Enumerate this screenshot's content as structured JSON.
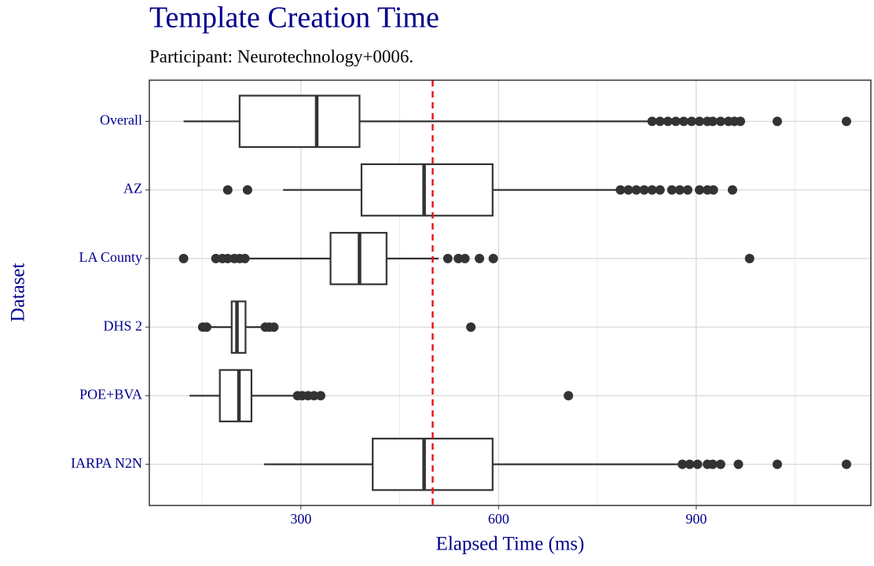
{
  "chart_data": {
    "type": "boxplot",
    "orientation": "horizontal",
    "title": "Template Creation Time",
    "subtitle": "Participant: Neurotechnology+0006.",
    "x_label": "Elapsed Time (ms)",
    "y_label": "Dataset",
    "categories": [
      "Overall",
      "AZ",
      "LA County",
      "DHS 2",
      "POE+BVA",
      "IARPA N2N"
    ],
    "whisker_low": [
      122,
      273,
      219,
      159,
      131,
      244
    ],
    "q1": [
      207,
      392,
      345,
      195,
      177,
      409
    ],
    "median": [
      324,
      487,
      389,
      203,
      206,
      487
    ],
    "q3": [
      389,
      591,
      430,
      216,
      225,
      591
    ],
    "whisker_high": [
      828,
      780,
      509,
      243,
      292,
      873
    ],
    "outliers": [
      [
        833,
        845,
        857,
        869,
        881,
        893,
        905,
        917,
        925,
        937,
        949,
        958,
        967,
        1023,
        1128
      ],
      [
        189,
        219,
        785,
        797,
        809,
        821,
        833,
        845,
        863,
        875,
        887,
        905,
        917,
        926,
        955
      ],
      [
        122,
        171,
        181,
        189,
        199,
        207,
        215,
        523,
        539,
        549,
        571,
        592,
        981
      ],
      [
        151,
        157,
        246,
        252,
        259,
        558
      ],
      [
        295,
        302,
        311,
        320,
        330,
        706
      ],
      [
        879,
        890,
        902,
        917,
        925,
        937,
        964,
        1023,
        1128
      ]
    ],
    "reference_line": 500,
    "reference_color": "#e41a1c",
    "box_color": "#333333",
    "xlim": [
      70,
      1165
    ],
    "xticks": [
      300,
      600,
      900
    ],
    "x_minor_grid": [
      150,
      450,
      750,
      1050
    ],
    "grid": true
  }
}
